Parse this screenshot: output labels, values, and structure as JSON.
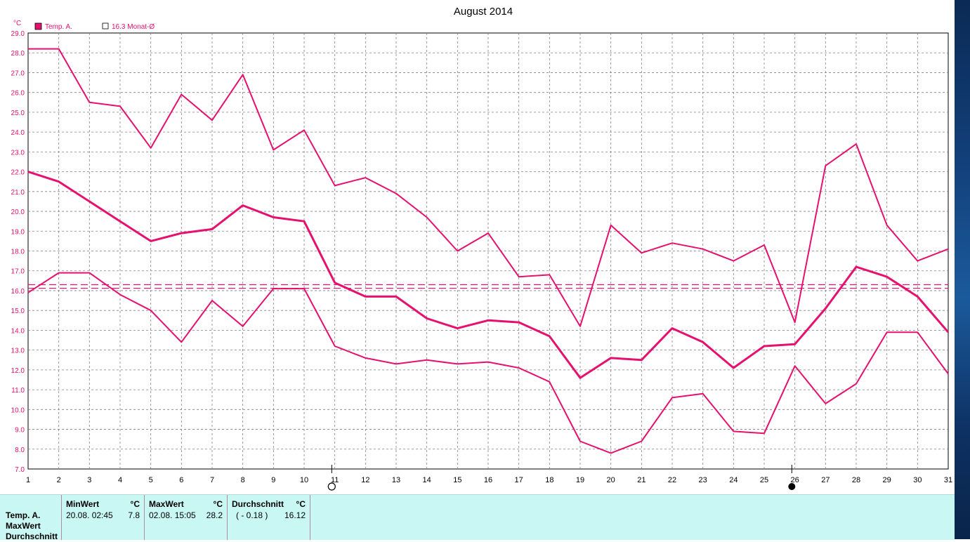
{
  "chart_data": {
    "type": "line",
    "title": "August 2014",
    "ylabel": "°C",
    "ylim": [
      7.0,
      29.0
    ],
    "yticks": [
      "29.0",
      "28.0",
      "27.0",
      "26.0",
      "25.0",
      "24.0",
      "23.0",
      "22.0",
      "21.0",
      "20.0",
      "19.0",
      "18.0",
      "17.0",
      "16.0",
      "15.0",
      "14.0",
      "13.0",
      "12.0",
      "11.0",
      "10.0",
      "9.0",
      "8.0",
      "7.0"
    ],
    "x": [
      1,
      2,
      3,
      4,
      5,
      6,
      7,
      8,
      9,
      10,
      11,
      12,
      13,
      14,
      15,
      16,
      17,
      18,
      19,
      20,
      21,
      22,
      23,
      24,
      25,
      26,
      27,
      28,
      29,
      30,
      31
    ],
    "grid": true,
    "legend": [
      {
        "name": "Temp. A.",
        "marker": "filled-square",
        "color": "#e6106e"
      },
      {
        "name": "16.3 Monat-Ø",
        "marker": "open-square",
        "color": "#e6106e"
      }
    ],
    "series": [
      {
        "name": "Temp. A.",
        "kind": "max",
        "values": [
          28.2,
          28.2,
          25.5,
          25.3,
          23.2,
          25.9,
          24.6,
          26.9,
          23.1,
          24.1,
          21.3,
          21.7,
          20.9,
          19.7,
          18.0,
          18.9,
          16.7,
          16.8,
          14.2,
          19.3,
          17.9,
          18.4,
          18.1,
          17.5,
          18.3,
          14.4,
          22.3,
          23.4,
          19.3,
          17.5,
          18.1
        ]
      },
      {
        "name": "Temp. A.",
        "kind": "mean",
        "values": [
          22.0,
          21.5,
          20.5,
          19.5,
          18.5,
          18.9,
          19.1,
          20.3,
          19.7,
          19.5,
          16.4,
          15.7,
          15.7,
          14.6,
          14.1,
          14.5,
          14.4,
          13.7,
          11.6,
          12.6,
          12.5,
          14.1,
          13.4,
          12.1,
          13.2,
          13.3,
          15.1,
          17.2,
          16.7,
          15.7,
          13.9
        ]
      },
      {
        "name": "Temp. A.",
        "kind": "min",
        "values": [
          15.9,
          16.9,
          16.9,
          15.8,
          15.0,
          13.4,
          15.5,
          14.2,
          16.1,
          16.1,
          13.2,
          12.6,
          12.3,
          12.5,
          12.3,
          12.4,
          12.1,
          11.4,
          8.4,
          7.8,
          8.4,
          10.6,
          10.8,
          8.9,
          8.8,
          12.2,
          10.3,
          11.3,
          13.9,
          13.9,
          11.8
        ]
      }
    ],
    "reference_lines": [
      16.3,
      16.12
    ],
    "moon_markers": [
      {
        "day": 10.9,
        "symbol": "○"
      },
      {
        "day": 25.9,
        "symbol": "●"
      }
    ],
    "colors": {
      "line": "#e6106e",
      "grid": "#808080",
      "axis": "#000000",
      "tick_label": "#000000",
      "y_tick_label": "#e6106e"
    }
  },
  "stats": {
    "row_labels": [
      "Temp. A.",
      "MaxWert",
      "Durchschnitt"
    ],
    "min": {
      "header": "MinWert",
      "unit": "°C",
      "datetime": "20.08.  02:45",
      "value": "7.8"
    },
    "max": {
      "header": "MaxWert",
      "unit": "°C",
      "datetime": "02.08.  15:05",
      "value": "28.2"
    },
    "avg": {
      "header": "Durchschnitt",
      "unit": "°C",
      "delta": "( - 0.18 )",
      "value": "16.12"
    }
  }
}
